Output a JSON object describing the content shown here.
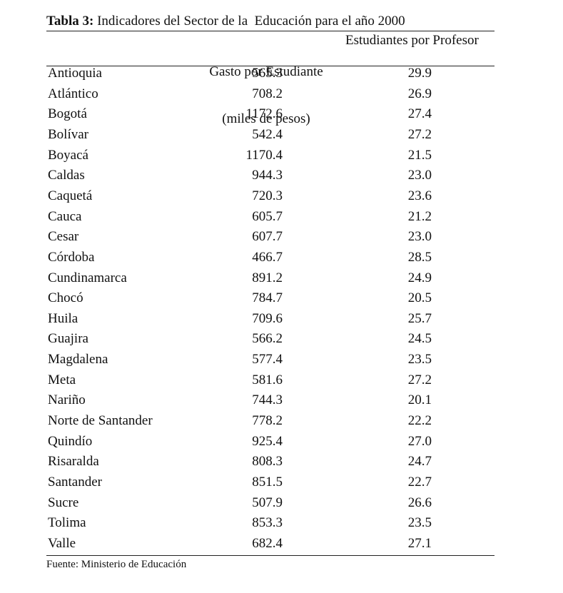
{
  "title": {
    "label": "Tabla 3:",
    "text": "Indicadores del Sector de la  Educación para el año 2000"
  },
  "table": {
    "header": [
      [
        "Gasto por Estudiante",
        "(miles de pesos)"
      ],
      [
        "Estudiantes por Profesor"
      ]
    ],
    "rows": [
      [
        "Antioquia",
        "565.3",
        "29.9"
      ],
      [
        "Atlántico",
        "708.2",
        "26.9"
      ],
      [
        "Bogotá",
        "1172.6",
        "27.4"
      ],
      [
        "Bolívar",
        "542.4",
        "27.2"
      ],
      [
        "Boyacá",
        "1170.4",
        "21.5"
      ],
      [
        "Caldas",
        "944.3",
        "23.0"
      ],
      [
        "Caquetá",
        "720.3",
        "23.6"
      ],
      [
        "Cauca",
        "605.7",
        "21.2"
      ],
      [
        "Cesar",
        "607.7",
        "23.0"
      ],
      [
        "Córdoba",
        "466.7",
        "28.5"
      ],
      [
        "Cundinamarca",
        "891.2",
        "24.9"
      ],
      [
        "Chocó",
        "784.7",
        "20.5"
      ],
      [
        "Huila",
        "709.6",
        "25.7"
      ],
      [
        "Guajira",
        "566.2",
        "24.5"
      ],
      [
        "Magdalena",
        "577.4",
        "23.5"
      ],
      [
        "Meta",
        "581.6",
        "27.2"
      ],
      [
        "Nariño",
        "744.3",
        "20.1"
      ],
      [
        "Norte de Santander",
        "778.2",
        "22.2"
      ],
      [
        "Quindío",
        "925.4",
        "27.0"
      ],
      [
        "Risaralda",
        "808.3",
        "24.7"
      ],
      [
        "Santander",
        "851.5",
        "22.7"
      ],
      [
        "Sucre",
        "507.9",
        "26.6"
      ],
      [
        "Tolima",
        "853.3",
        "23.5"
      ],
      [
        "Valle",
        "682.4",
        "27.1"
      ]
    ]
  },
  "footer": "Fuente: Ministerio de Educación"
}
